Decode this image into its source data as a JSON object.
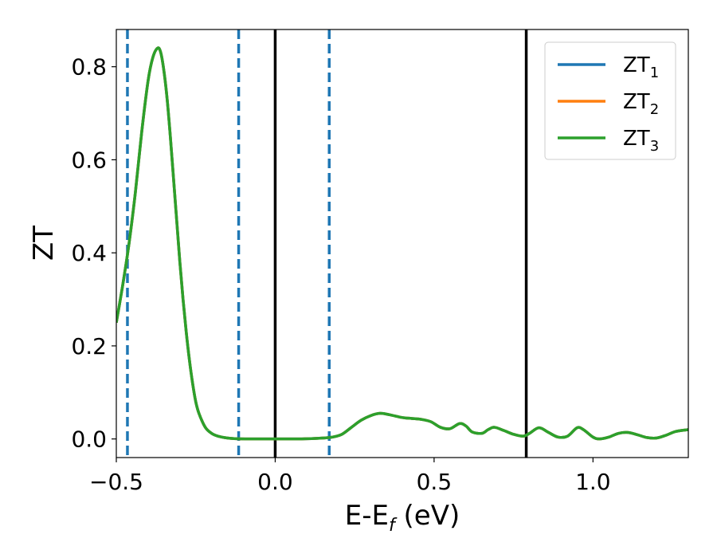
{
  "chart_data": {
    "type": "line",
    "title": "",
    "xlabel": {
      "main": "E-E",
      "sub": "f",
      "suffix": " (eV)"
    },
    "ylabel": "ZT",
    "xlim": [
      -0.5,
      1.3
    ],
    "ylim": [
      -0.04,
      0.88
    ],
    "xticks": [
      -0.5,
      0.0,
      0.5,
      1.0
    ],
    "xtick_labels": [
      "−0.5",
      "0.0",
      "0.5",
      "1.0"
    ],
    "yticks": [
      0.0,
      0.2,
      0.4,
      0.6,
      0.8
    ],
    "ytick_labels": [
      "0.0",
      "0.2",
      "0.4",
      "0.6",
      "0.8"
    ],
    "grid": false,
    "legend_position": "top-right",
    "series": [
      {
        "name": {
          "main": "ZT",
          "sub": "1"
        },
        "color": "#1f77b4"
      },
      {
        "name": {
          "main": "ZT",
          "sub": "2"
        },
        "color": "#ff7f0e"
      },
      {
        "name": {
          "main": "ZT",
          "sub": "3"
        },
        "color": "#2ca02c"
      }
    ],
    "curve": {
      "x": [
        -0.5,
        -0.48,
        -0.46,
        -0.44,
        -0.42,
        -0.4,
        -0.385,
        -0.37,
        -0.36,
        -0.35,
        -0.34,
        -0.33,
        -0.32,
        -0.31,
        -0.3,
        -0.29,
        -0.28,
        -0.27,
        -0.26,
        -0.25,
        -0.24,
        -0.22,
        -0.2,
        -0.18,
        -0.15,
        -0.12,
        -0.08,
        -0.04,
        0.0,
        0.05,
        0.1,
        0.15,
        0.18,
        0.21,
        0.24,
        0.27,
        0.3,
        0.33,
        0.36,
        0.4,
        0.43,
        0.46,
        0.49,
        0.52,
        0.55,
        0.58,
        0.6,
        0.62,
        0.65,
        0.67,
        0.69,
        0.72,
        0.75,
        0.78,
        0.8,
        0.83,
        0.86,
        0.89,
        0.92,
        0.95,
        0.97,
        1.0,
        1.02,
        1.05,
        1.08,
        1.11,
        1.14,
        1.17,
        1.2,
        1.23,
        1.26,
        1.3
      ],
      "y": [
        0.25,
        0.33,
        0.42,
        0.53,
        0.66,
        0.77,
        0.82,
        0.84,
        0.83,
        0.79,
        0.73,
        0.65,
        0.56,
        0.47,
        0.38,
        0.3,
        0.23,
        0.17,
        0.12,
        0.08,
        0.055,
        0.025,
        0.012,
        0.006,
        0.002,
        0.0005,
        0.0,
        0.0,
        0.0,
        0.0,
        0.0005,
        0.002,
        0.004,
        0.01,
        0.025,
        0.04,
        0.05,
        0.055,
        0.052,
        0.046,
        0.044,
        0.042,
        0.037,
        0.025,
        0.022,
        0.033,
        0.028,
        0.015,
        0.012,
        0.02,
        0.025,
        0.018,
        0.01,
        0.006,
        0.012,
        0.024,
        0.014,
        0.004,
        0.006,
        0.024,
        0.02,
        0.004,
        0.0,
        0.004,
        0.012,
        0.014,
        0.009,
        0.003,
        0.002,
        0.008,
        0.016,
        0.02
      ]
    },
    "vlines": [
      {
        "x": -0.465,
        "style": "dashed",
        "color": "#1f77b4"
      },
      {
        "x": -0.115,
        "style": "dashed",
        "color": "#1f77b4"
      },
      {
        "x": 0.0,
        "style": "solid",
        "color": "#000000"
      },
      {
        "x": 0.17,
        "style": "dashed",
        "color": "#1f77b4"
      },
      {
        "x": 0.79,
        "style": "solid",
        "color": "#000000"
      }
    ]
  }
}
